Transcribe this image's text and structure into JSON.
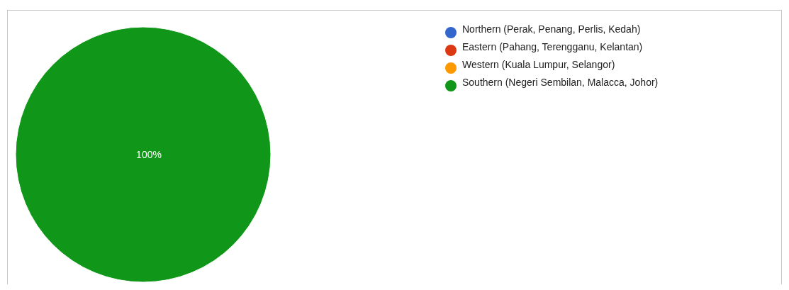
{
  "chart_data": {
    "type": "pie",
    "categories": [
      "Northern (Perak, Penang, Perlis, Kedah)",
      "Eastern (Pahang, Terengganu, Kelantan)",
      "Western (Kuala Lumpur, Selangor)",
      "Southern (Negeri Sembilan, Malacca, Johor)"
    ],
    "values": [
      0,
      0,
      0,
      100
    ],
    "colors": [
      "#3366cc",
      "#dc3912",
      "#ff9900",
      "#109618"
    ],
    "value_labels": [
      null,
      null,
      null,
      "100%"
    ],
    "legend": "right"
  }
}
